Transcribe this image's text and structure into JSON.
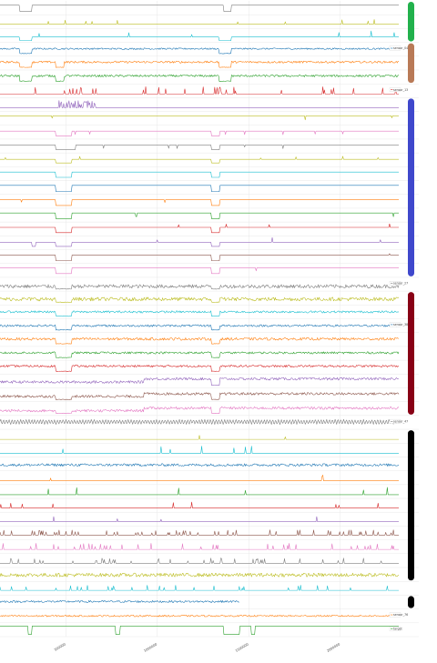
{
  "chart_data": {
    "type": "line",
    "layout": "stacked-subplots",
    "x": {
      "tick_labels": [
        "500000",
        "1000000",
        "1500000",
        "2000000"
      ],
      "tick_values": [
        500000,
        1000000,
        1500000,
        2000000
      ],
      "range": [
        140000,
        2320000
      ]
    },
    "grid": true,
    "legend_placement": "right-edge of each subplot",
    "visible_legend_labels": [
      "sensor_04",
      "sensor_13",
      "sensor_27",
      "sensor_38",
      "sensor_47",
      "sensor_76",
      "target"
    ],
    "palette": [
      "#7f7f7f",
      "#bcbd22",
      "#17becf",
      "#1f77b4",
      "#ff7f0e",
      "#2ca02c",
      "#d62728",
      "#9467bd",
      "#e377c2",
      "#8c564b"
    ],
    "cluster_bars": [
      {
        "color": "#22b14c",
        "first_panel": 0,
        "last_panel": 2
      },
      {
        "color": "#b97a57",
        "first_panel": 3,
        "last_panel": 5
      },
      {
        "color": "#3f48cc",
        "first_panel": 7,
        "last_panel": 19
      },
      {
        "color": "#880015",
        "first_panel": 21,
        "last_panel": 29
      },
      {
        "color": "#000000",
        "first_panel": 31,
        "last_panel": 41
      },
      {
        "color": "#000000",
        "first_panel": 43,
        "last_panel": 43
      }
    ],
    "series": [
      {
        "color": "#7f7f7f",
        "style": "step",
        "legend": "",
        "base": 0.75,
        "dips": [
          [
            0.05,
            0.08
          ],
          [
            0.56,
            0.58
          ]
        ],
        "dip_to": 0.15
      },
      {
        "color": "#bcbd22",
        "style": "spiky",
        "legend": "",
        "base": 0.25,
        "spike_dir": "up",
        "amp": 0.5,
        "density": 0.015
      },
      {
        "color": "#17becf",
        "style": "step-spiky",
        "legend": "",
        "base": 0.35,
        "dips": [
          [
            0.05,
            0.08
          ],
          [
            0.55,
            0.58
          ]
        ],
        "dip_to": 0.0,
        "spike_dir": "up",
        "amp": 0.6,
        "density": 0.01
      },
      {
        "color": "#1f77b4",
        "style": "noisy-step",
        "legend": "sensor_04",
        "base": 0.55,
        "dips": [
          [
            0.05,
            0.08
          ],
          [
            0.55,
            0.58
          ]
        ],
        "dip_to": 0.1,
        "noise": 0.15
      },
      {
        "color": "#ff7f0e",
        "style": "noisy-step",
        "legend": "",
        "base": 0.6,
        "dips": [
          [
            0.05,
            0.08
          ],
          [
            0.14,
            0.16
          ],
          [
            0.55,
            0.58
          ]
        ],
        "dip_to": 0.1,
        "noise": 0.2
      },
      {
        "color": "#2ca02c",
        "style": "noisy-step",
        "legend": "",
        "base": 0.6,
        "dips": [
          [
            0.05,
            0.08
          ],
          [
            0.14,
            0.16
          ],
          [
            0.55,
            0.58
          ]
        ],
        "dip_to": 0.1,
        "noise": 0.2
      },
      {
        "color": "#d62728",
        "style": "spiky",
        "legend": "sensor_13",
        "base": 0.2,
        "spike_dir": "up",
        "amp": 0.7,
        "density": 0.06
      },
      {
        "color": "#9467bd",
        "style": "burst",
        "legend": "",
        "base": 0.2,
        "burst": [
          0.14,
          0.24
        ],
        "burst_to": 0.9
      },
      {
        "color": "#bcbd22",
        "style": "flat-down",
        "legend": "",
        "base": 0.75,
        "spike_dir": "down",
        "amp": 0.4,
        "density": 0.004
      },
      {
        "color": "#e377c2",
        "style": "step-spiky",
        "legend": "",
        "base": 0.6,
        "dips": [
          [
            0.14,
            0.18
          ],
          [
            0.53,
            0.55
          ]
        ],
        "dip_to": 0.15,
        "spike_dir": "down",
        "amp": 0.4,
        "density": 0.01
      },
      {
        "color": "#7f7f7f",
        "style": "step-spiky",
        "legend": "",
        "base": 0.6,
        "dips": [
          [
            0.14,
            0.19
          ],
          [
            0.53,
            0.55
          ]
        ],
        "dip_to": 0.15,
        "spike_dir": "down",
        "amp": 0.35,
        "density": 0.008
      },
      {
        "color": "#bcbd22",
        "style": "step-spiky",
        "legend": "",
        "base": 0.55,
        "dips": [
          [
            0.14,
            0.18
          ],
          [
            0.53,
            0.55
          ]
        ],
        "dip_to": 0.2,
        "spike_dir": "up",
        "amp": 0.3,
        "density": 0.008
      },
      {
        "color": "#17becf",
        "style": "step-spiky",
        "legend": "",
        "base": 0.65,
        "dips": [
          [
            0.14,
            0.18
          ],
          [
            0.53,
            0.55
          ]
        ],
        "dip_to": 0.15,
        "spike_dir": "down",
        "amp": 0.3,
        "density": 0.004
      },
      {
        "color": "#1f77b4",
        "style": "step-spiky",
        "legend": "",
        "base": 0.7,
        "dips": [
          [
            0.14,
            0.18
          ],
          [
            0.53,
            0.55
          ]
        ],
        "dip_to": 0.1,
        "spike_dir": "down",
        "amp": 0.5,
        "density": 0.006
      },
      {
        "color": "#ff7f0e",
        "style": "step-spiky",
        "legend": "",
        "base": 0.65,
        "dips": [
          [
            0.14,
            0.18
          ],
          [
            0.53,
            0.55
          ]
        ],
        "dip_to": 0.1,
        "spike_dir": "down",
        "amp": 0.3,
        "density": 0.004
      },
      {
        "color": "#2ca02c",
        "style": "step-spiky",
        "legend": "",
        "base": 0.7,
        "dips": [
          [
            0.14,
            0.18
          ],
          [
            0.53,
            0.55
          ]
        ],
        "dip_to": 0.15,
        "spike_dir": "down",
        "amp": 0.4,
        "density": 0.005
      },
      {
        "color": "#d62728",
        "style": "step-spiky",
        "legend": "",
        "base": 0.65,
        "dips": [
          [
            0.14,
            0.18
          ],
          [
            0.53,
            0.55
          ]
        ],
        "dip_to": 0.15,
        "spike_dir": "up",
        "amp": 0.4,
        "density": 0.006
      },
      {
        "color": "#9467bd",
        "style": "step-spiky",
        "legend": "",
        "base": 0.55,
        "dips": [
          [
            0.08,
            0.09
          ],
          [
            0.14,
            0.18
          ],
          [
            0.53,
            0.55
          ]
        ],
        "dip_to": 0.15,
        "spike_dir": "up",
        "amp": 0.5,
        "density": 0.004
      },
      {
        "color": "#8c564b",
        "style": "step-spiky",
        "legend": "",
        "base": 0.65,
        "dips": [
          [
            0.14,
            0.18
          ],
          [
            0.53,
            0.55
          ]
        ],
        "dip_to": 0.1,
        "spike_dir": "up",
        "amp": 0.3,
        "density": 0.004
      },
      {
        "color": "#e377c2",
        "style": "step-spiky",
        "legend": "",
        "base": 0.75,
        "dips": [
          [
            0.14,
            0.18
          ],
          [
            0.53,
            0.55
          ]
        ],
        "dip_to": 0.2,
        "spike_dir": "down",
        "amp": 0.3,
        "density": 0.004
      },
      {
        "color": "#7f7f7f",
        "style": "noisy-step",
        "legend": "sensor_27",
        "base": 0.3,
        "dips": [
          [
            0.14,
            0.18
          ],
          [
            0.53,
            0.55
          ]
        ],
        "dip_to": 0.05,
        "noise": 0.35
      },
      {
        "color": "#bcbd22",
        "style": "noisy-step",
        "legend": "",
        "base": 0.4,
        "dips": [
          [
            0.14,
            0.18
          ],
          [
            0.53,
            0.55
          ]
        ],
        "dip_to": 0.1,
        "noise": 0.35
      },
      {
        "color": "#17becf",
        "style": "noisy-step",
        "legend": "",
        "base": 0.5,
        "dips": [
          [
            0.14,
            0.18
          ],
          [
            0.53,
            0.55
          ]
        ],
        "dip_to": 0.1,
        "noise": 0.2
      },
      {
        "color": "#1f77b4",
        "style": "noisy-step",
        "legend": "sensor_38",
        "base": 0.5,
        "dips": [
          [
            0.14,
            0.18
          ],
          [
            0.53,
            0.55
          ]
        ],
        "dip_to": 0.1,
        "noise": 0.2
      },
      {
        "color": "#ff7f0e",
        "style": "noisy-step",
        "legend": "",
        "base": 0.55,
        "dips": [
          [
            0.14,
            0.18
          ],
          [
            0.53,
            0.55
          ]
        ],
        "dip_to": 0.1,
        "noise": 0.25
      },
      {
        "color": "#2ca02c",
        "style": "noisy-step",
        "legend": "",
        "base": 0.55,
        "dips": [
          [
            0.14,
            0.18
          ],
          [
            0.53,
            0.55
          ]
        ],
        "dip_to": 0.1,
        "noise": 0.2
      },
      {
        "color": "#d62728",
        "style": "noisy-step",
        "legend": "",
        "base": 0.6,
        "dips": [
          [
            0.14,
            0.18
          ],
          [
            0.53,
            0.55
          ]
        ],
        "dip_to": 0.1,
        "noise": 0.2
      },
      {
        "color": "#9467bd",
        "style": "level-shift",
        "legend": "",
        "base": 0.4,
        "shift_at": 0.36,
        "shift_to": 0.7,
        "dips": [
          [
            0.53,
            0.55
          ]
        ],
        "dip_to": 0.1,
        "noise": 0.25
      },
      {
        "color": "#8c564b",
        "style": "level-shift",
        "legend": "",
        "base": 0.35,
        "shift_at": 0.36,
        "shift_to": 0.6,
        "dips": [
          [
            0.14,
            0.18
          ],
          [
            0.53,
            0.55
          ]
        ],
        "dip_to": 0.05,
        "noise": 0.25
      },
      {
        "color": "#e377c2",
        "style": "level-shift",
        "legend": "",
        "base": 0.3,
        "shift_at": 0.36,
        "shift_to": 0.55,
        "dips": [
          [
            0.14,
            0.18
          ],
          [
            0.53,
            0.55
          ]
        ],
        "dip_to": 0.05,
        "noise": 0.25
      },
      {
        "color": "#7f7f7f",
        "style": "oscillate",
        "legend": "sensor_47",
        "base": 0.55,
        "amp": 0.4
      },
      {
        "color": "#bcbd22",
        "style": "spiky",
        "legend": "",
        "base": 0.2,
        "spike_dir": "up",
        "amp": 0.6,
        "density": 0.01
      },
      {
        "color": "#17becf",
        "style": "spiky",
        "legend": "",
        "base": 0.2,
        "spike_dir": "up",
        "amp": 0.7,
        "density": 0.012
      },
      {
        "color": "#1f77b4",
        "style": "noisy",
        "legend": "",
        "base": 0.4,
        "noise": 0.25
      },
      {
        "color": "#ff7f0e",
        "style": "spiky",
        "legend": "",
        "base": 0.2,
        "spike_dir": "up",
        "amp": 0.6,
        "density": 0.012
      },
      {
        "color": "#2ca02c",
        "style": "spiky",
        "legend": "",
        "base": 0.2,
        "spike_dir": "up",
        "amp": 0.7,
        "density": 0.012
      },
      {
        "color": "#d62728",
        "style": "spiky",
        "legend": "",
        "base": 0.25,
        "spike_dir": "up",
        "amp": 0.6,
        "density": 0.012
      },
      {
        "color": "#9467bd",
        "style": "spiky",
        "legend": "",
        "base": 0.25,
        "spike_dir": "up",
        "amp": 0.5,
        "density": 0.01
      },
      {
        "color": "#8c564b",
        "style": "spiky",
        "legend": "",
        "base": 0.3,
        "spike_dir": "up",
        "amp": 0.5,
        "density": 0.08
      },
      {
        "color": "#e377c2",
        "style": "spiky",
        "legend": "",
        "base": 0.25,
        "spike_dir": "up",
        "amp": 0.6,
        "density": 0.09
      },
      {
        "color": "#7f7f7f",
        "style": "spiky",
        "legend": "",
        "base": 0.25,
        "spike_dir": "up",
        "amp": 0.5,
        "density": 0.07
      },
      {
        "color": "#bcbd22",
        "style": "noisy",
        "legend": "",
        "base": 0.45,
        "noise": 0.35
      },
      {
        "color": "#17becf",
        "style": "spiky",
        "legend": "",
        "base": 0.3,
        "spike_dir": "up",
        "amp": 0.5,
        "density": 0.04
      },
      {
        "color": "#1f77b4",
        "style": "partial",
        "legend": "",
        "base": 0.55,
        "end": 0.6,
        "noise": 0.2
      },
      {
        "color": "#ff7f0e",
        "style": "noisy",
        "legend": "sensor_76",
        "base": 0.5,
        "noise": 0.15
      },
      {
        "color": "#2ca02c",
        "style": "step",
        "legend": "target",
        "base": 0.85,
        "dips": [
          [
            0.07,
            0.08
          ],
          [
            0.29,
            0.3
          ],
          [
            0.56,
            0.6
          ],
          [
            0.63,
            0.64
          ]
        ],
        "dip_to": 0.05
      }
    ]
  }
}
